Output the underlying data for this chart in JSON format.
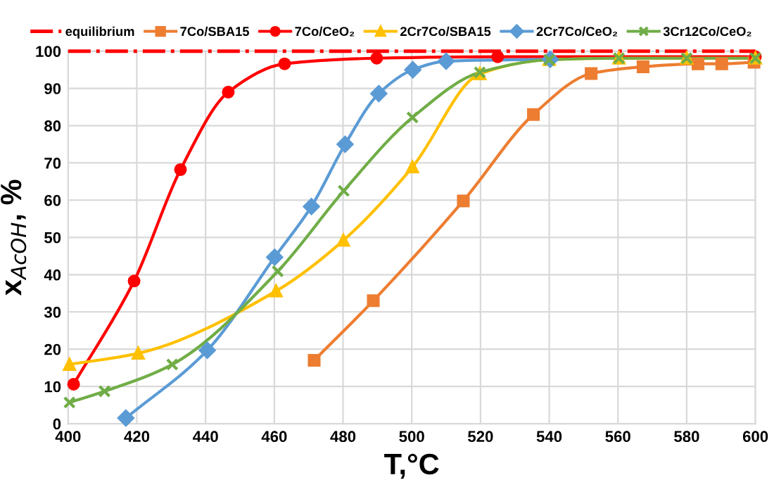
{
  "chart_data": {
    "type": "line",
    "xlabel": "T,°C",
    "ylabel": "x$_{AcOH}$, %",
    "xlim": [
      400,
      600
    ],
    "xticks": [
      400,
      420,
      440,
      460,
      480,
      500,
      520,
      540,
      560,
      580,
      600
    ],
    "ylim": [
      0,
      100
    ],
    "yticks": [
      0,
      10,
      20,
      30,
      40,
      50,
      60,
      70,
      80,
      90,
      100
    ],
    "grid": true,
    "legend": "top",
    "ref_lines": [
      {
        "axis": "y",
        "value": 100,
        "label": "equilibrium",
        "color": "#ff0000",
        "line_style": "dashdot"
      }
    ],
    "series": [
      {
        "name": "7Co/SBA15",
        "color": "#ed7d31",
        "marker": "square",
        "x": [
          471.6,
          488.8,
          515,
          535.4,
          552.2,
          567.3,
          583.3,
          590.2,
          599.6
        ],
        "values": [
          17,
          33,
          59.8,
          83,
          94,
          95.8,
          96.6,
          96.6,
          97
        ]
      },
      {
        "name": "7Co/CeO₂",
        "color": "#ff0000",
        "marker": "circle",
        "x": [
          401.6,
          419.2,
          432.7,
          446.6,
          463,
          489.8,
          525,
          600
        ],
        "values": [
          10.6,
          38.3,
          68.2,
          89,
          96.6,
          98.1,
          98.5,
          98.5
        ]
      },
      {
        "name": "2Cr7Co/SBA15",
        "color": "#ffc000",
        "marker": "triangle",
        "x": [
          400.4,
          420.4,
          460.5,
          480.1,
          500.2,
          519.8,
          540,
          560.3,
          580,
          600
        ],
        "values": [
          15.9,
          18.9,
          35.6,
          49.2,
          68.9,
          93.9,
          97.7,
          98.1,
          98.1,
          98.1
        ]
      },
      {
        "name": "2Cr7Co/CeO₂",
        "color": "#5b9bd5",
        "marker": "diamond",
        "x": [
          416.8,
          440.5,
          460.1,
          470.8,
          480.6,
          490.4,
          500.3,
          510,
          540.3
        ],
        "values": [
          1.5,
          19.7,
          44.7,
          58.3,
          75,
          88.6,
          95,
          97.3,
          97.8
        ]
      },
      {
        "name": "3Cr12Co/CeO₂",
        "color": "#70ad47",
        "marker": "cross",
        "x": [
          400.4,
          410.6,
          430.3,
          461,
          480.2,
          500.2,
          519.8,
          540,
          560.3,
          580,
          600
        ],
        "values": [
          5.7,
          8.7,
          15.9,
          40.9,
          62.5,
          82.2,
          94.3,
          97.7,
          98.1,
          98.1,
          98.1
        ]
      }
    ]
  }
}
